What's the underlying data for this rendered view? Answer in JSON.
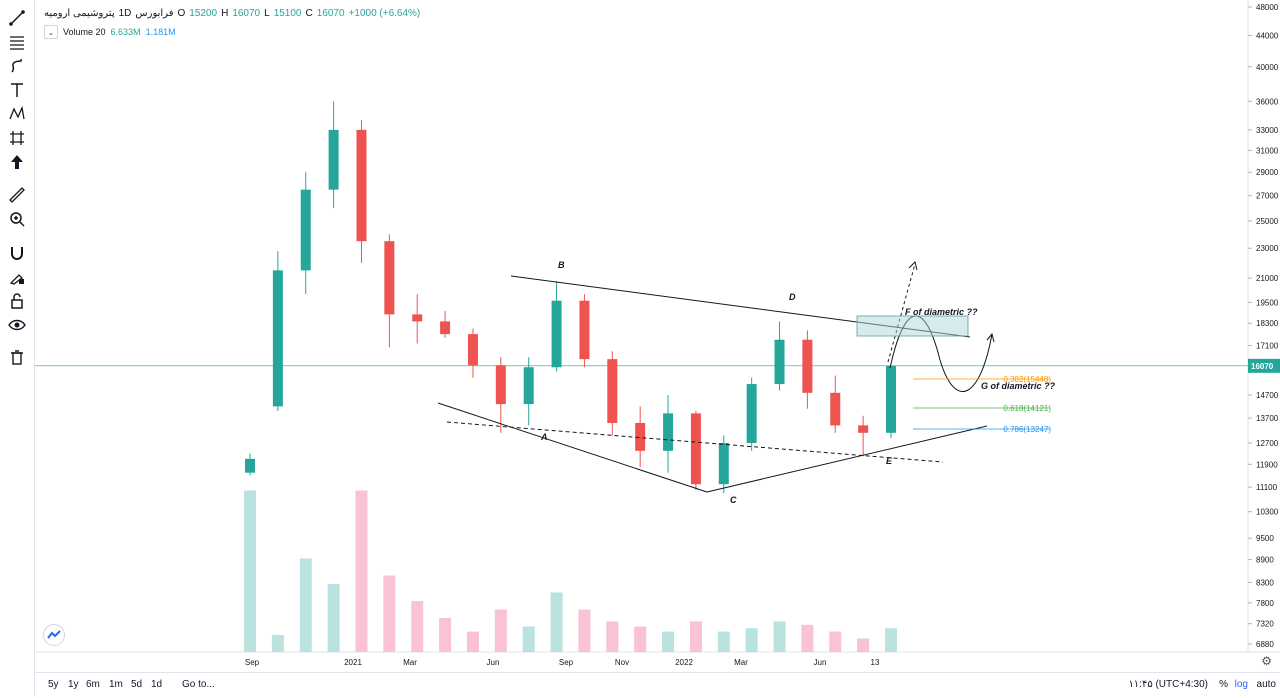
{
  "legend": {
    "symbol": "پتروشیمی ارومیه",
    "interval": "1D",
    "exchange": "فرابورس",
    "open_label": "O",
    "open": "15200",
    "high_label": "H",
    "high": "16070",
    "low_label": "L",
    "low": "15100",
    "close_label": "C",
    "close": "16070",
    "change": "+1000 (+6.64%)",
    "volume_label": "Volume 20",
    "volume_value": "6.633M",
    "volume_ma": "1.181M"
  },
  "toolbar": {
    "tools": [
      "trend-line-icon",
      "fib-retracement-icon",
      "brush-icon",
      "text-icon",
      "pattern-icon",
      "prediction-icon",
      "arrow-cursor-icon",
      "ruler-icon",
      "zoom-in-icon",
      "magnet-icon",
      "lock-drawing-icon",
      "unlock-icon",
      "eye-icon",
      "trash-icon"
    ]
  },
  "bottom": {
    "ranges": [
      "5y",
      "1y",
      "6m",
      "1m",
      "5d",
      "1d"
    ],
    "goto": "Go to...",
    "timezone": "۱۱:۴۵ (UTC+4:30)",
    "percent": "%",
    "log": "log",
    "auto": "auto"
  },
  "colors": {
    "up": "#26a69a",
    "down": "#ef5350",
    "vol_up": "#b2dfdb",
    "vol_down": "#f8bbd0",
    "price_line": "#26a69a",
    "fib_382": "#ff9800",
    "fib_618": "#4caf50",
    "fib_786": "#2196f3",
    "box": "#b2d8d8"
  },
  "chart_data": {
    "type": "candlestick",
    "price_axis_ticks": [
      48000,
      44000,
      40000,
      36000,
      33000,
      31000,
      29000,
      27000,
      25000,
      23000,
      21000,
      19500,
      18300,
      17100,
      16070,
      14700,
      13700,
      12700,
      11900,
      11100,
      10300,
      9500,
      8900,
      8300,
      7800,
      7320,
      6880
    ],
    "time_axis_ticks": [
      "Sep",
      "2021",
      "Mar",
      "Jun",
      "Sep",
      "Nov",
      "2022",
      "Mar",
      "Jun",
      "13"
    ],
    "current_price": "16070",
    "candles": [
      [
        "Sep",
        11600,
        12300,
        11500,
        12100
      ],
      [
        "Oct",
        14200,
        22800,
        14000,
        21500
      ],
      [
        "Nov",
        21500,
        29000,
        20000,
        27500
      ],
      [
        "Dec",
        27500,
        36000,
        26000,
        33000
      ],
      [
        "2021",
        33000,
        34000,
        22000,
        23500
      ],
      [
        "Feb",
        23500,
        24000,
        17000,
        18800
      ],
      [
        "Mar",
        18800,
        20000,
        17200,
        18400
      ],
      [
        "Apr",
        18400,
        19000,
        17500,
        17700
      ],
      [
        "May",
        17700,
        18000,
        15500,
        16100
      ],
      [
        "Jun",
        16100,
        16500,
        13100,
        14300
      ],
      [
        "Jul",
        14300,
        16500,
        13400,
        16000
      ],
      [
        "Aug",
        16000,
        20800,
        15800,
        19600
      ],
      [
        "Sep",
        19600,
        20000,
        16000,
        16400
      ],
      [
        "Oct",
        16400,
        16800,
        13000,
        13500
      ],
      [
        "Nov",
        13500,
        14200,
        11800,
        12400
      ],
      [
        "Dec",
        12400,
        14700,
        11600,
        13900
      ],
      [
        "2022",
        13900,
        14000,
        11000,
        11200
      ],
      [
        "Feb",
        11200,
        13000,
        10900,
        12700
      ],
      [
        "Mar",
        12700,
        15500,
        12400,
        15200
      ],
      [
        "Apr",
        15200,
        18400,
        14900,
        17400
      ],
      [
        "May",
        17400,
        17900,
        14100,
        14800
      ],
      [
        "Jun",
        14800,
        15600,
        13100,
        13400
      ],
      [
        "Jul",
        13400,
        13800,
        12200,
        13100
      ],
      [
        "13",
        13100,
        16070,
        12900,
        16070
      ]
    ],
    "volumes": [
      0.95,
      0.1,
      0.55,
      0.4,
      0.95,
      0.45,
      0.3,
      0.2,
      0.12,
      0.25,
      0.15,
      0.35,
      0.25,
      0.18,
      0.15,
      0.12,
      0.18,
      0.12,
      0.14,
      0.18,
      0.16,
      0.12,
      0.08,
      0.14
    ],
    "pattern_labels": [
      "A",
      "B",
      "C",
      "D",
      "E"
    ],
    "annotations": [
      "F of diametric ??",
      "G of diametric ??"
    ],
    "fib_levels": [
      {
        "label": "0.382(15448)",
        "price": 15448
      },
      {
        "label": "0.618(14121)",
        "price": 14121
      },
      {
        "label": "0.786(13247)",
        "price": 13247
      }
    ]
  }
}
